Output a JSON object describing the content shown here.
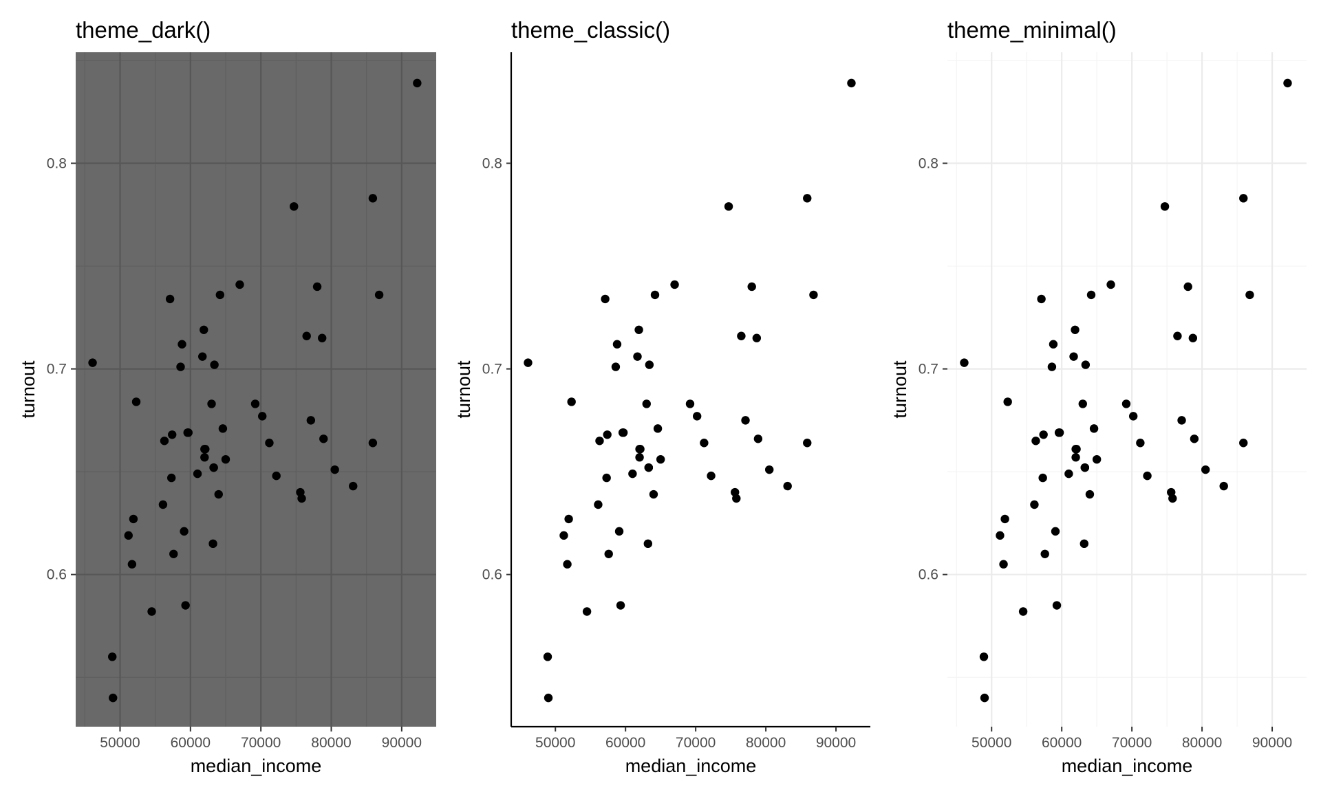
{
  "chart_data": [
    {
      "type": "scatter",
      "theme": "dark",
      "title": "theme_dark()",
      "xlabel": "median_income",
      "ylabel": "turnout",
      "xlim": [
        43700,
        94900
      ],
      "ylim": [
        0.526,
        0.854
      ],
      "xticks": [
        50000,
        60000,
        70000,
        80000,
        90000
      ],
      "xtick_labels": [
        "50000",
        "60000",
        "70000",
        "80000",
        "90000"
      ],
      "yticks": [
        0.6,
        0.7,
        0.8
      ],
      "ytick_labels": [
        "0.6",
        "0.7",
        "0.8"
      ],
      "grid": true,
      "panel_color": "#696969",
      "grid_major_color": "#575757",
      "grid_minor_color": "#5f5f5f",
      "point_color": "#000000"
    },
    {
      "type": "scatter",
      "theme": "classic",
      "title": "theme_classic()",
      "xlabel": "median_income",
      "ylabel": "turnout",
      "xlim": [
        43700,
        94900
      ],
      "ylim": [
        0.526,
        0.854
      ],
      "xticks": [
        50000,
        60000,
        70000,
        80000,
        90000
      ],
      "xtick_labels": [
        "50000",
        "60000",
        "70000",
        "80000",
        "90000"
      ],
      "yticks": [
        0.6,
        0.7,
        0.8
      ],
      "ytick_labels": [
        "0.6",
        "0.7",
        "0.8"
      ],
      "grid": false,
      "panel_color": "#ffffff",
      "axis_line_color": "#000000",
      "point_color": "#000000"
    },
    {
      "type": "scatter",
      "theme": "minimal",
      "title": "theme_minimal()",
      "xlabel": "median_income",
      "ylabel": "turnout",
      "xlim": [
        43700,
        94900
      ],
      "ylim": [
        0.526,
        0.854
      ],
      "xticks": [
        50000,
        60000,
        70000,
        80000,
        90000
      ],
      "xtick_labels": [
        "50000",
        "60000",
        "70000",
        "80000",
        "90000"
      ],
      "yticks": [
        0.6,
        0.7,
        0.8
      ],
      "ytick_labels": [
        "0.6",
        "0.7",
        "0.8"
      ],
      "grid": true,
      "panel_color": "#ffffff",
      "grid_major_color": "#ebebeb",
      "grid_minor_color": "#f4f4f4",
      "point_color": "#000000"
    }
  ],
  "points": {
    "x": [
      46100,
      48900,
      49000,
      51200,
      51700,
      51900,
      52300,
      54500,
      56100,
      56300,
      57100,
      57300,
      57400,
      57600,
      58600,
      58800,
      59100,
      59300,
      59600,
      59700,
      61000,
      61700,
      61900,
      62000,
      62000,
      62100,
      63000,
      63200,
      63300,
      63300,
      63400,
      64000,
      64200,
      64600,
      65000,
      67000,
      69200,
      70200,
      71200,
      72200,
      74700,
      75600,
      75800,
      76500,
      77100,
      78000,
      78700,
      78900,
      80500,
      83100,
      85900,
      85900,
      86800,
      92200
    ],
    "y": [
      0.703,
      0.56,
      0.54,
      0.619,
      0.605,
      0.627,
      0.684,
      0.582,
      0.634,
      0.665,
      0.734,
      0.647,
      0.668,
      0.61,
      0.701,
      0.712,
      0.621,
      0.585,
      0.669,
      0.669,
      0.649,
      0.706,
      0.719,
      0.661,
      0.657,
      0.661,
      0.683,
      0.615,
      0.652,
      0.652,
      0.702,
      0.639,
      0.736,
      0.671,
      0.656,
      0.741,
      0.683,
      0.677,
      0.664,
      0.648,
      0.779,
      0.64,
      0.637,
      0.716,
      0.675,
      0.74,
      0.715,
      0.666,
      0.651,
      0.643,
      0.783,
      0.664,
      0.736,
      0.839
    ]
  }
}
